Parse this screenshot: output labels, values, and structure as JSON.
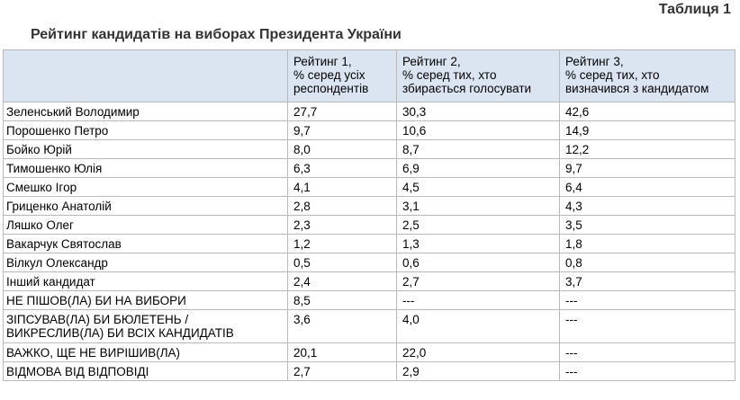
{
  "table_label": "Таблиця 1",
  "title": "Рейтинг кандидатів на виборах Президента України",
  "headers": [
    "",
    "Рейтинг 1,\n% серед усіх\nреспондентів",
    "Рейтинг 2,\n% серед тих, хто\nзбирається голосувати",
    "Рейтинг 3,\n% серед тих, хто\nвизначився з кандидатом"
  ],
  "rows": [
    [
      "Зеленський Володимир",
      "27,7",
      "30,3",
      "42,6"
    ],
    [
      "Порошенко Петро",
      "9,7",
      "10,6",
      "14,9"
    ],
    [
      "Бойко Юрій",
      "8,0",
      "8,7",
      "12,2"
    ],
    [
      "Тимошенко Юлія",
      "6,3",
      "6,9",
      "9,7"
    ],
    [
      "Смешко Ігор",
      "4,1",
      "4,5",
      "6,4"
    ],
    [
      "Гриценко Анатолій",
      "2,8",
      "3,1",
      "4,3"
    ],
    [
      "Ляшко Олег",
      "2,3",
      "2,5",
      "3,5"
    ],
    [
      "Вакарчук Святослав",
      "1,2",
      "1,3",
      "1,8"
    ],
    [
      "Вілкул Олександр",
      "0,5",
      "0,6",
      "0,8"
    ],
    [
      "Інший кандидат",
      "2,4",
      "2,7",
      "3,7"
    ],
    [
      "НЕ ПІШОВ(ЛА) БИ НА ВИБОРИ",
      "8,5",
      "---",
      "---"
    ],
    [
      "ЗІПСУВАВ(ЛА) БИ БЮЛЕТЕНЬ /\nВИКРЕСЛИВ(ЛА) БИ ВСІХ КАНДИДАТІВ",
      "3,6",
      "4,0",
      "---"
    ],
    [
      "ВАЖКО, ЩЕ НЕ ВИРІШИВ(ЛА)",
      "20,1",
      "22,0",
      "---"
    ],
    [
      "ВІДМОВА ВІД ВІДПОВІДІ",
      "2,7",
      "2,9",
      "---"
    ]
  ]
}
